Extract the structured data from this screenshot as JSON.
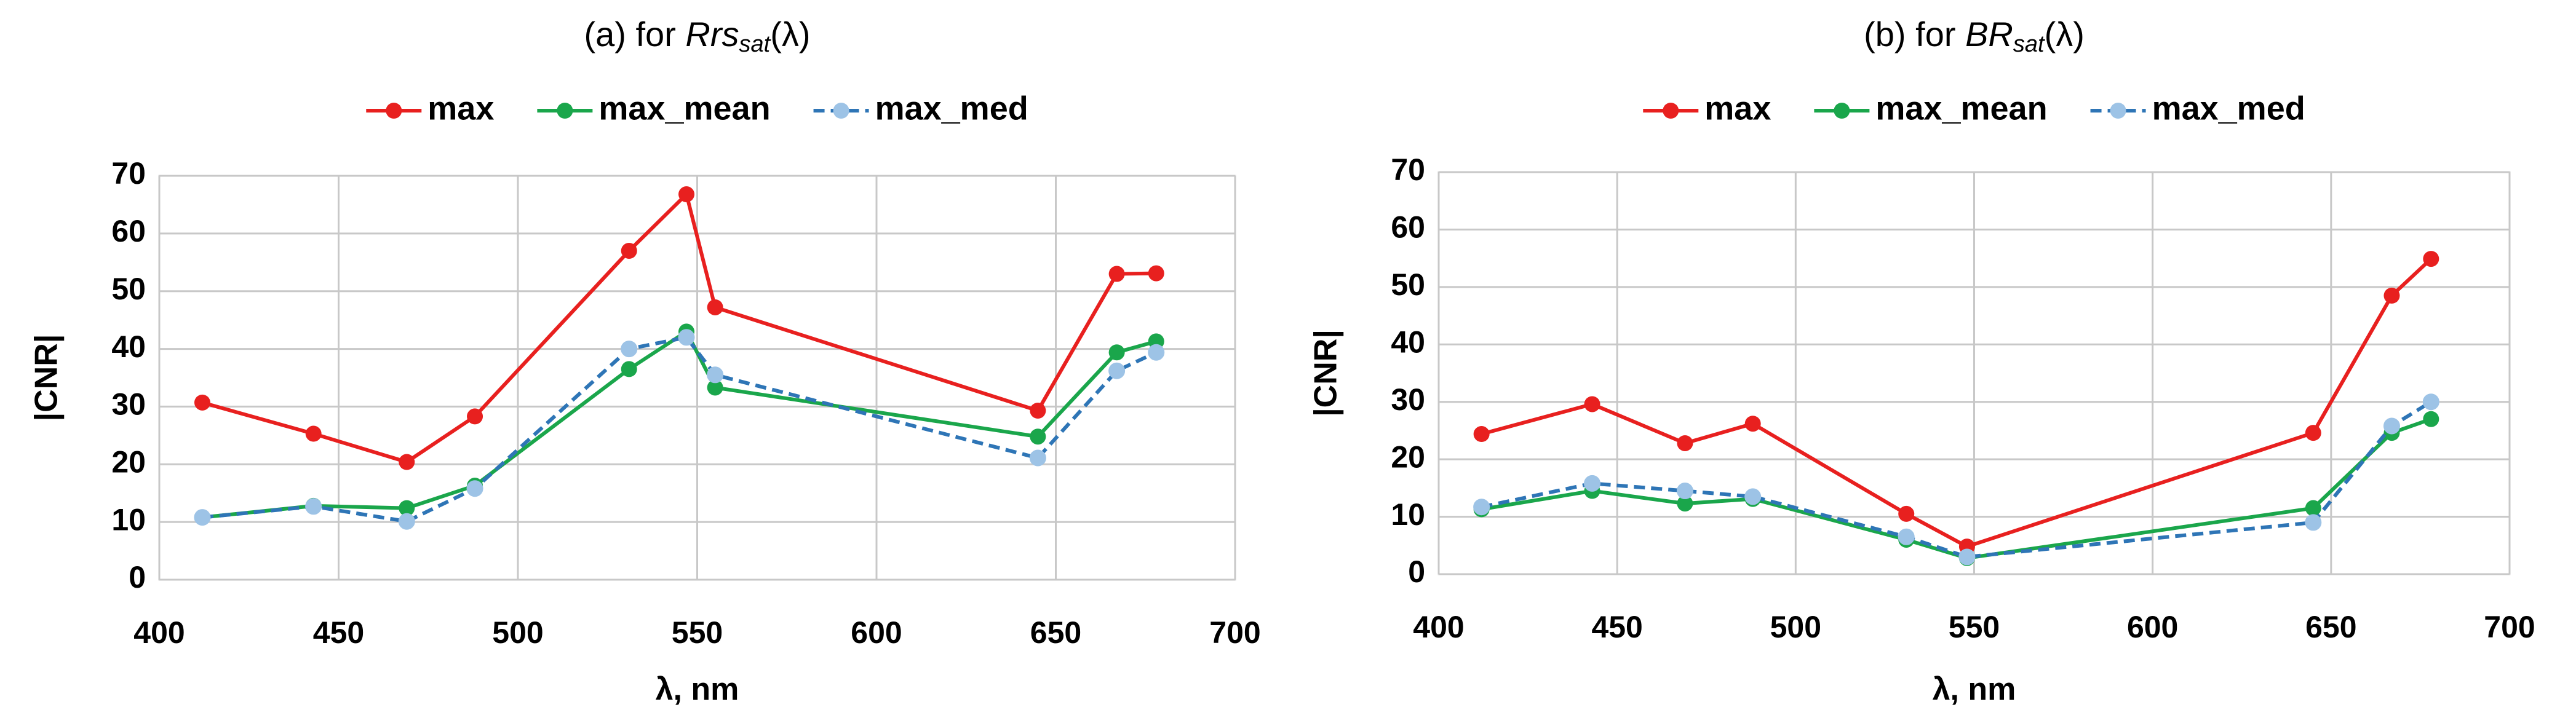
{
  "chart_data": [
    {
      "type": "line",
      "title": {
        "prefix": "(a) for ",
        "italic": "Rrs",
        "subscript": "sat",
        "suffix": "(λ)"
      },
      "xlabel": "λ, nm",
      "ylabel": "|CNR|",
      "x": [
        412,
        443,
        469,
        488,
        531,
        547,
        555,
        645,
        667,
        678
      ],
      "series": [
        {
          "name": "max",
          "color": "#e8201f",
          "marker_color": "#e8201f",
          "dash": false,
          "values": [
            30.7,
            25.3,
            20.4,
            28.3,
            57,
            66.8,
            47.2,
            29.3,
            53,
            53.1
          ]
        },
        {
          "name": "max_mean",
          "color": "#1aa64b",
          "marker_color": "#1aa64b",
          "dash": false,
          "values": [
            10.8,
            12.8,
            12.4,
            16.3,
            36.5,
            43,
            33.3,
            24.8,
            39.4,
            41.3
          ]
        },
        {
          "name": "max_med",
          "color": "#2e75b6",
          "marker_color": "#9dc3e6",
          "dash": true,
          "values": [
            10.8,
            12.7,
            10.1,
            15.8,
            40,
            42,
            35.5,
            21.1,
            36.2,
            39.4
          ]
        }
      ],
      "xlim": [
        400,
        700
      ],
      "xticks": [
        400,
        450,
        500,
        550,
        600,
        650,
        700
      ],
      "ylim": [
        0,
        70
      ],
      "yticks": [
        0,
        10,
        20,
        30,
        40,
        50,
        60,
        70
      ],
      "grid": true,
      "legend": "top"
    },
    {
      "type": "line",
      "title": {
        "prefix": "(b) for ",
        "italic": "BR",
        "subscript": "sat",
        "suffix": "(λ)"
      },
      "xlabel": "λ, nm",
      "ylabel": "|CNR|",
      "x": [
        412,
        443,
        469,
        488,
        531,
        548,
        645,
        667,
        678
      ],
      "series": [
        {
          "name": "max",
          "color": "#e8201f",
          "marker_color": "#e8201f",
          "dash": false,
          "values": [
            24.4,
            29.6,
            22.8,
            26.2,
            10.5,
            4.8,
            24.6,
            48.5,
            54.9
          ]
        },
        {
          "name": "max_mean",
          "color": "#1aa64b",
          "marker_color": "#1aa64b",
          "dash": false,
          "values": [
            11.3,
            14.5,
            12.3,
            13.1,
            6.0,
            2.8,
            11.5,
            24.6,
            27.0
          ]
        },
        {
          "name": "max_med",
          "color": "#2e75b6",
          "marker_color": "#9dc3e6",
          "dash": true,
          "values": [
            11.7,
            15.8,
            14.5,
            13.5,
            6.5,
            3.0,
            9.0,
            25.8,
            30.0
          ]
        }
      ],
      "xlim": [
        400,
        700
      ],
      "xticks": [
        400,
        450,
        500,
        550,
        600,
        650,
        700
      ],
      "ylim": [
        0,
        70
      ],
      "yticks": [
        0,
        10,
        20,
        30,
        40,
        50,
        60,
        70
      ],
      "grid": true,
      "legend": "top"
    }
  ]
}
